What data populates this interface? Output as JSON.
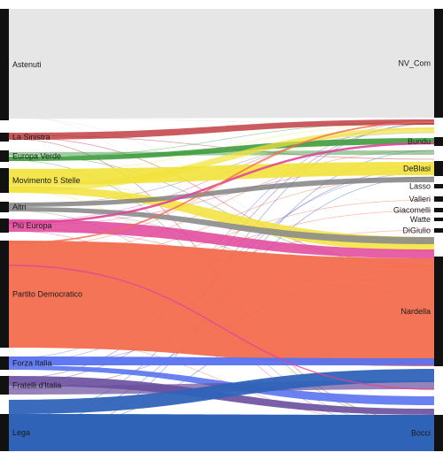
{
  "diagram": {
    "type": "sankey",
    "sources": [
      {
        "id": "astenuti",
        "label": "Astenuti",
        "color": "#e3e3e3"
      },
      {
        "id": "la-sinistra",
        "label": "La Sinistra",
        "color": "#b8262b"
      },
      {
        "id": "europa-verde",
        "label": "Europa Verde",
        "color": "#3f9c3f"
      },
      {
        "id": "m5s",
        "label": "Movimento 5 Stelle",
        "color": "#f2e23a"
      },
      {
        "id": "altri",
        "label": "Altri",
        "color": "#8c8c8c"
      },
      {
        "id": "piu-europa",
        "label": "Più Europa",
        "color": "#e0449a"
      },
      {
        "id": "pd",
        "label": "Partito Democratico",
        "color": "#f36d4f"
      },
      {
        "id": "forza-italia",
        "label": "Forza Italia",
        "color": "#5a73f0"
      },
      {
        "id": "fdi",
        "label": "Fratelli d'Italia",
        "color": "#6a4e9e"
      },
      {
        "id": "lega",
        "label": "Lega",
        "color": "#2f63b8"
      }
    ],
    "targets": [
      {
        "id": "nv-com",
        "label": "NV_Com",
        "color": "#e3e3e3"
      },
      {
        "id": "bundu",
        "label": "Bundu",
        "color": "#3f9c3f"
      },
      {
        "id": "deblasi",
        "label": "DeBlasi",
        "color": "#f2e23a"
      },
      {
        "id": "lasso",
        "label": "Lasso",
        "color": "#333333"
      },
      {
        "id": "valleri",
        "label": "Valleri",
        "color": "#333333"
      },
      {
        "id": "giacomelli",
        "label": "Giacomelli",
        "color": "#333333"
      },
      {
        "id": "watte",
        "label": "Watte",
        "color": "#333333"
      },
      {
        "id": "digiulio",
        "label": "DiGiulio",
        "color": "#333333"
      },
      {
        "id": "nardella",
        "label": "Nardella",
        "color": "#f36d4f"
      },
      {
        "id": "bocci",
        "label": "Bocci",
        "color": "#2f63b8"
      }
    ]
  }
}
